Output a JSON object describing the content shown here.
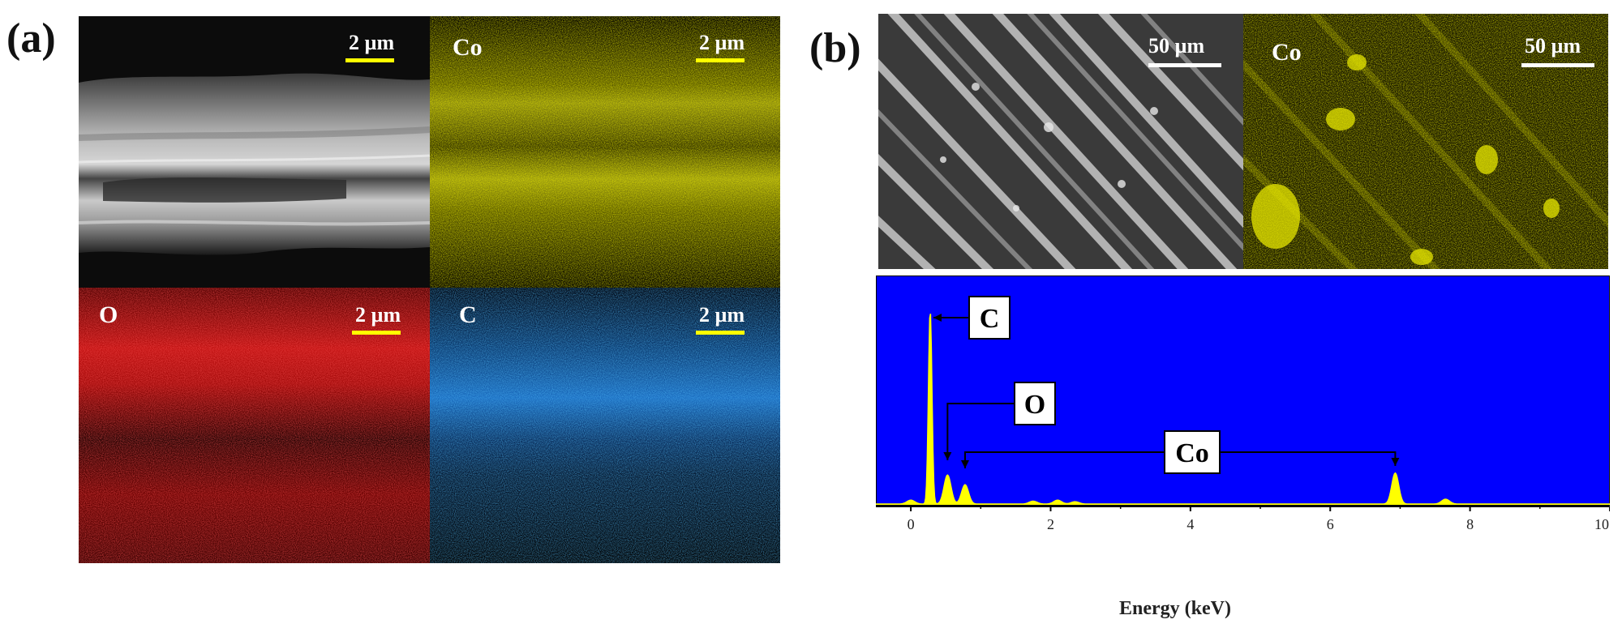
{
  "panel_a": {
    "label": "(a)",
    "maps": [
      {
        "id": "sem",
        "element": "",
        "scale": "2 µm",
        "scale_color": "#ffff00"
      },
      {
        "id": "co",
        "element": "Co",
        "scale": "2 µm",
        "scale_color": "#ffff00",
        "color": "#e6e600"
      },
      {
        "id": "o",
        "element": "O",
        "scale": "2 µm",
        "scale_color": "#ffff00",
        "color": "#ff2020"
      },
      {
        "id": "c",
        "element": "C",
        "scale": "2 µm",
        "scale_color": "#ffff00",
        "color": "#1a8cff"
      }
    ]
  },
  "panel_b": {
    "label": "(b)",
    "maps": [
      {
        "id": "sem_b",
        "element": "",
        "scale": "50 µm",
        "scale_color": "#ffffff"
      },
      {
        "id": "co_b",
        "element": "Co",
        "scale": "50 µm",
        "scale_color": "#ffffff",
        "color": "#e6e600"
      }
    ]
  },
  "chart_data": {
    "type": "line",
    "title": "",
    "xlabel": "Energy (keV)",
    "ylabel": "",
    "xlim": [
      -0.5,
      10
    ],
    "ylim": [
      0,
      1
    ],
    "xticks": [
      0,
      2,
      4,
      6,
      8,
      10
    ],
    "background": "#0000ff",
    "line_color": "#ffff00",
    "grid": false,
    "series": [
      {
        "values": [
          {
            "x": 0.0,
            "y": 0.02
          },
          {
            "x": 0.277,
            "y": 1.0
          },
          {
            "x": 0.525,
            "y": 0.15
          },
          {
            "x": 0.776,
            "y": 0.1
          },
          {
            "x": 1.75,
            "y": 0.015
          },
          {
            "x": 2.1,
            "y": 0.02
          },
          {
            "x": 2.35,
            "y": 0.012
          },
          {
            "x": 6.93,
            "y": 0.16
          },
          {
            "x": 7.65,
            "y": 0.025
          }
        ]
      }
    ],
    "annotations": [
      {
        "label": "C",
        "x": 0.277
      },
      {
        "label": "O",
        "x": 0.525
      },
      {
        "label": "Co",
        "x": [
          0.776,
          6.93
        ]
      }
    ]
  }
}
